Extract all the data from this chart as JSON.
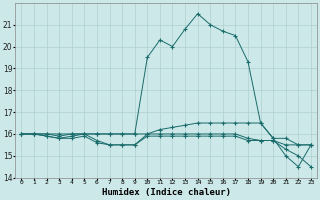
{
  "xlabel": "Humidex (Indice chaleur)",
  "x_ticks": [
    0,
    1,
    2,
    3,
    4,
    5,
    6,
    7,
    8,
    9,
    10,
    11,
    12,
    13,
    14,
    15,
    16,
    17,
    18,
    19,
    20,
    21,
    22,
    23
  ],
  "ylim": [
    14,
    22
  ],
  "yticks": [
    14,
    15,
    16,
    17,
    18,
    19,
    20,
    21
  ],
  "bg_color": "#cce8e8",
  "grid_color": "#aed0d0",
  "line_color": "#1a6b6b",
  "series": [
    [
      16.0,
      16.0,
      16.0,
      15.9,
      16.0,
      16.0,
      16.0,
      16.0,
      16.0,
      16.0,
      19.5,
      20.3,
      20.0,
      20.8,
      21.5,
      21.0,
      20.7,
      20.5,
      19.3,
      16.5,
      15.8,
      15.0,
      14.5,
      15.5
    ],
    [
      16.0,
      16.0,
      16.0,
      16.0,
      16.0,
      16.0,
      16.0,
      16.0,
      16.0,
      16.0,
      16.0,
      16.2,
      16.3,
      16.4,
      16.5,
      16.5,
      16.5,
      16.5,
      16.5,
      16.5,
      15.8,
      15.8,
      15.5,
      15.5
    ],
    [
      16.0,
      16.0,
      15.9,
      15.8,
      15.9,
      16.0,
      15.7,
      15.5,
      15.5,
      15.5,
      16.0,
      16.0,
      16.0,
      16.0,
      16.0,
      16.0,
      16.0,
      16.0,
      15.8,
      15.7,
      15.7,
      15.5,
      15.5,
      15.5
    ],
    [
      16.0,
      16.0,
      15.9,
      15.8,
      15.8,
      15.9,
      15.6,
      15.5,
      15.5,
      15.5,
      15.9,
      15.9,
      15.9,
      15.9,
      15.9,
      15.9,
      15.9,
      15.9,
      15.7,
      15.7,
      15.7,
      15.3,
      15.0,
      14.5
    ]
  ]
}
